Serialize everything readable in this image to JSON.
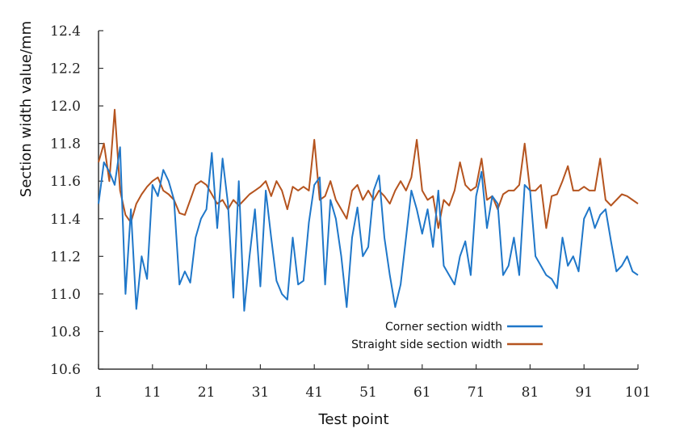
{
  "chart_data": {
    "type": "line",
    "xlabel": "Test point",
    "ylabel": "Section width value/mm",
    "xlim": [
      1,
      101
    ],
    "ylim": [
      10.6,
      12.4
    ],
    "x_ticks": [
      "1",
      "11",
      "21",
      "31",
      "41",
      "51",
      "61",
      "71",
      "81",
      "91",
      "101"
    ],
    "y_ticks": [
      "12.4",
      "12.2",
      "12.0",
      "11.8",
      "11.6",
      "11.4",
      "11.2",
      "11.0",
      "10.8",
      "10.6"
    ],
    "grid": false,
    "legend_position": "bottom-right",
    "colors": {
      "corner": "#1f77c9",
      "straight": "#b5541f"
    },
    "x": [
      1,
      2,
      3,
      4,
      5,
      6,
      7,
      8,
      9,
      10,
      11,
      12,
      13,
      14,
      15,
      16,
      17,
      18,
      19,
      20,
      21,
      22,
      23,
      24,
      25,
      26,
      27,
      28,
      29,
      30,
      31,
      32,
      33,
      34,
      35,
      36,
      37,
      38,
      39,
      40,
      41,
      42,
      43,
      44,
      45,
      46,
      47,
      48,
      49,
      50,
      51,
      52,
      53,
      54,
      55,
      56,
      57,
      58,
      59,
      60,
      61,
      62,
      63,
      64,
      65,
      66,
      67,
      68,
      69,
      70,
      71,
      72,
      73,
      74,
      75,
      76,
      77,
      78,
      79,
      80,
      81,
      82,
      83,
      84,
      85,
      86,
      87,
      88,
      89,
      90,
      91,
      92,
      93,
      94,
      95,
      96,
      97,
      98,
      99,
      100,
      101
    ],
    "series": [
      {
        "name": "Corner section width",
        "values": [
          11.48,
          11.7,
          11.65,
          11.58,
          11.78,
          11.0,
          11.45,
          10.92,
          11.2,
          11.08,
          11.58,
          11.52,
          11.66,
          11.6,
          11.5,
          11.05,
          11.12,
          11.06,
          11.3,
          11.4,
          11.45,
          11.75,
          11.35,
          11.72,
          11.48,
          10.98,
          11.6,
          10.91,
          11.2,
          11.45,
          11.04,
          11.55,
          11.3,
          11.07,
          11.0,
          10.97,
          11.3,
          11.05,
          11.07,
          11.38,
          11.58,
          11.62,
          11.05,
          11.5,
          11.4,
          11.2,
          10.93,
          11.3,
          11.46,
          11.2,
          11.25,
          11.55,
          11.63,
          11.3,
          11.1,
          10.93,
          11.05,
          11.3,
          11.55,
          11.45,
          11.32,
          11.45,
          11.25,
          11.55,
          11.15,
          11.1,
          11.05,
          11.2,
          11.28,
          11.1,
          11.52,
          11.65,
          11.35,
          11.52,
          11.48,
          11.1,
          11.15,
          11.3,
          11.1,
          11.58,
          11.55,
          11.2,
          11.15,
          11.1,
          11.08,
          11.03,
          11.3,
          11.15,
          11.2,
          11.12,
          11.4,
          11.46,
          11.35,
          11.42,
          11.45,
          11.28,
          11.12,
          11.15,
          11.2,
          11.12,
          11.1
        ]
      },
      {
        "name": "Straight side section width",
        "values": [
          11.7,
          11.8,
          11.6,
          11.98,
          11.55,
          11.42,
          11.38,
          11.48,
          11.53,
          11.57,
          11.6,
          11.62,
          11.55,
          11.53,
          11.5,
          11.43,
          11.42,
          11.5,
          11.58,
          11.6,
          11.58,
          11.53,
          11.48,
          11.5,
          11.45,
          11.5,
          11.47,
          11.5,
          11.53,
          11.55,
          11.57,
          11.6,
          11.52,
          11.6,
          11.55,
          11.45,
          11.57,
          11.55,
          11.57,
          11.55,
          11.82,
          11.5,
          11.52,
          11.6,
          11.5,
          11.45,
          11.4,
          11.55,
          11.58,
          11.5,
          11.55,
          11.5,
          11.55,
          11.52,
          11.48,
          11.55,
          11.6,
          11.55,
          11.62,
          11.82,
          11.55,
          11.5,
          11.52,
          11.35,
          11.5,
          11.47,
          11.55,
          11.7,
          11.58,
          11.55,
          11.57,
          11.72,
          11.5,
          11.52,
          11.45,
          11.53,
          11.55,
          11.55,
          11.58,
          11.8,
          11.55,
          11.55,
          11.58,
          11.35,
          11.52,
          11.53,
          11.6,
          11.68,
          11.55,
          11.55,
          11.57,
          11.55,
          11.55,
          11.72,
          11.5,
          11.47,
          11.5,
          11.53,
          11.52,
          11.5,
          11.48
        ]
      }
    ]
  }
}
